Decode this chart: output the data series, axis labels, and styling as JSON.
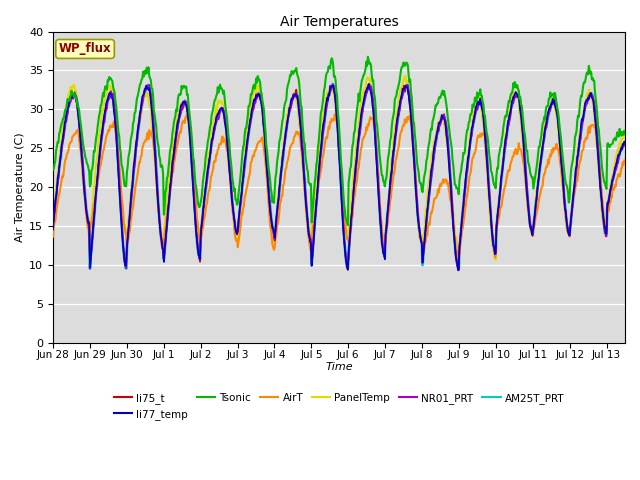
{
  "title": "Air Temperatures",
  "xlabel": "Time",
  "ylabel": "Air Temperature (C)",
  "ylim": [
    0,
    40
  ],
  "yticks": [
    0,
    5,
    10,
    15,
    20,
    25,
    30,
    35,
    40
  ],
  "background_color": "#dcdcdc",
  "annotation_text": "WP_flux",
  "annotation_bg": "#ffffbb",
  "annotation_border": "#999900",
  "annotation_text_color": "#8b0000",
  "series": {
    "li75_t": {
      "color": "#cc0000",
      "lw": 1.2,
      "zorder": 4
    },
    "li77_temp": {
      "color": "#0000cc",
      "lw": 1.2,
      "zorder": 4
    },
    "Tsonic": {
      "color": "#00bb00",
      "lw": 1.5,
      "zorder": 5
    },
    "AirT": {
      "color": "#ff8800",
      "lw": 1.5,
      "zorder": 3
    },
    "PanelTemp": {
      "color": "#dddd00",
      "lw": 1.5,
      "zorder": 2
    },
    "NR01_PRT": {
      "color": "#aa00cc",
      "lw": 1.2,
      "zorder": 4
    },
    "AM25T_PRT": {
      "color": "#00cccc",
      "lw": 2.0,
      "zorder": 2
    }
  },
  "legend_order": [
    "li75_t",
    "li77_temp",
    "Tsonic",
    "AirT",
    "PanelTemp",
    "NR01_PRT",
    "AM25T_PRT"
  ],
  "x_tick_labels": [
    "Jun 28",
    "Jun 29",
    "Jun 30",
    "Jul 1",
    "Jul 2",
    "Jul 3",
    "Jul 4",
    "Jul 5",
    "Jul 6",
    "Jul 7",
    "Jul 8",
    "Jul 9",
    "Jul 10",
    "Jul 11",
    "Jul 12",
    "Jul 13"
  ],
  "x_tick_positions": [
    0,
    1,
    2,
    3,
    4,
    5,
    6,
    7,
    8,
    9,
    10,
    11,
    12,
    13,
    14,
    15
  ]
}
